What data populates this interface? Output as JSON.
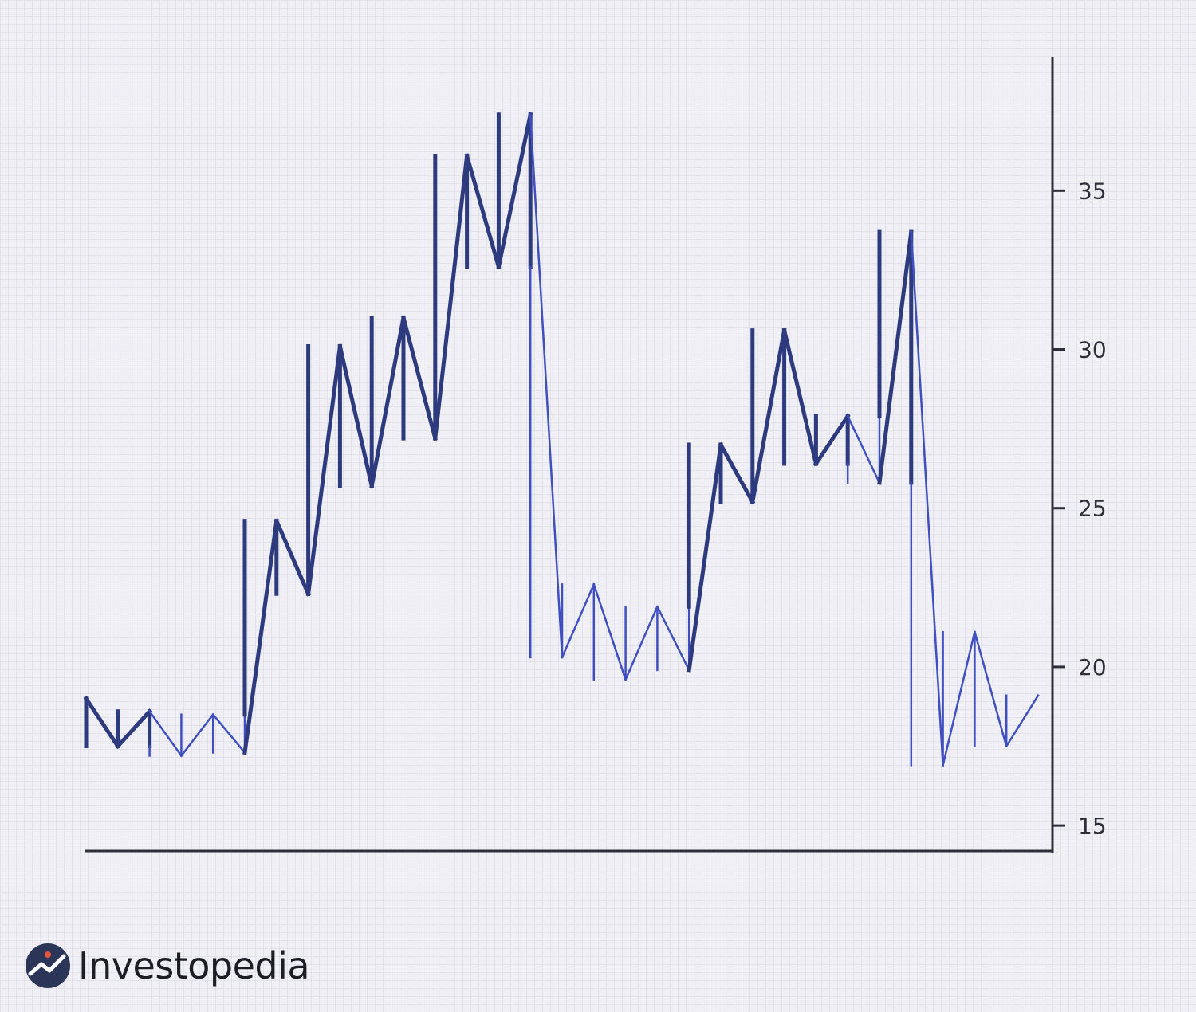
{
  "chart_data": {
    "type": "line",
    "style": "kagi",
    "y_axis_position": "right",
    "yticks": [
      15,
      20,
      25,
      30,
      35
    ],
    "ylim": [
      14.2,
      39.2
    ],
    "grid": true,
    "colors": {
      "yang": "#2e3a7e",
      "yin": "#3f4fc1",
      "axis": "#2f2f3a"
    },
    "points": [
      19.0,
      17.5,
      18.6,
      17.2,
      18.5,
      17.3,
      24.6,
      22.3,
      30.1,
      25.7,
      31.0,
      27.2,
      36.1,
      32.6,
      37.4,
      20.3,
      22.6,
      19.6,
      21.9,
      19.9,
      27.0,
      25.2,
      30.6,
      26.4,
      27.9,
      25.8,
      33.7,
      16.9,
      21.1,
      17.5,
      19.1
    ]
  },
  "logo": {
    "text": "Investopedia",
    "icon": "investopedia-logo-icon"
  }
}
